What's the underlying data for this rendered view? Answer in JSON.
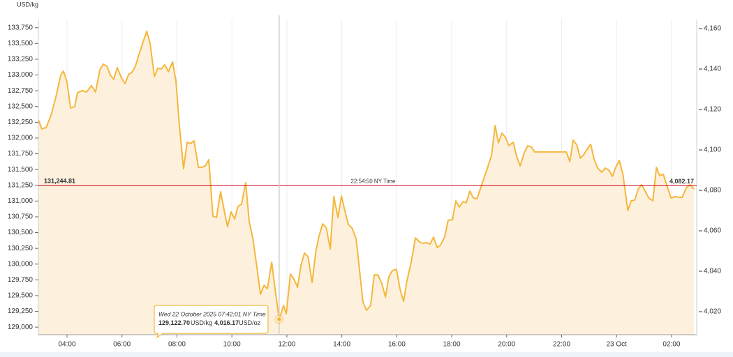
{
  "chart_data": {
    "type": "area",
    "y_unit": "USD/kg",
    "x": [
      2.96,
      3.08,
      3.24,
      3.42,
      3.59,
      3.77,
      3.87,
      4.0,
      4.13,
      4.28,
      4.38,
      4.56,
      4.71,
      4.89,
      5.04,
      5.2,
      5.32,
      5.45,
      5.58,
      5.7,
      5.83,
      5.98,
      6.11,
      6.24,
      6.36,
      6.49,
      6.62,
      6.77,
      6.9,
      7.02,
      7.18,
      7.3,
      7.43,
      7.56,
      7.69,
      7.84,
      7.96,
      8.09,
      8.24,
      8.37,
      8.5,
      8.62,
      8.78,
      8.9,
      9.03,
      9.16,
      9.31,
      9.44,
      9.59,
      9.72,
      9.84,
      9.97,
      10.1,
      10.22,
      10.35,
      10.5,
      10.63,
      10.76,
      10.91,
      11.04,
      11.17,
      11.29,
      11.45,
      11.6,
      11.72,
      11.88,
      11.98,
      12.13,
      12.26,
      12.39,
      12.51,
      12.64,
      12.77,
      12.92,
      13.05,
      13.17,
      13.3,
      13.43,
      13.58,
      13.71,
      13.86,
      13.99,
      14.11,
      14.24,
      14.37,
      14.52,
      14.65,
      14.77,
      14.9,
      15.05,
      15.18,
      15.31,
      15.46,
      15.59,
      15.71,
      15.84,
      15.99,
      16.12,
      16.25,
      16.37,
      16.53,
      16.68,
      16.83,
      16.96,
      17.09,
      17.21,
      17.34,
      17.47,
      17.6,
      17.75,
      17.87,
      18.03,
      18.15,
      18.28,
      18.41,
      18.53,
      18.66,
      18.79,
      18.92,
      19.04,
      19.17,
      19.3,
      19.45,
      19.58,
      19.7,
      19.83,
      19.96,
      20.08,
      20.24,
      20.36,
      20.49,
      20.64,
      20.77,
      20.9,
      21.02,
      21.41,
      21.66,
      21.92,
      22.17,
      22.3,
      22.42,
      22.55,
      22.68,
      22.8,
      22.93,
      23.06,
      23.18,
      23.31,
      23.46,
      23.59,
      23.72,
      23.85,
      23.97,
      24.1,
      24.23,
      24.41,
      24.53,
      24.66,
      24.79,
      24.91,
      25.04,
      25.17,
      25.32,
      25.45,
      25.57,
      25.7,
      25.83,
      25.98,
      26.13,
      26.26,
      26.39,
      26.54,
      26.67,
      26.82
    ],
    "values": [
      132288,
      132144,
      132166,
      132365,
      132642,
      132996,
      133063,
      132886,
      132476,
      132498,
      132720,
      132753,
      132731,
      132830,
      132731,
      133085,
      133173,
      133140,
      132996,
      132930,
      133118,
      132952,
      132864,
      133007,
      133040,
      133140,
      133328,
      133527,
      133694,
      133506,
      132974,
      133107,
      133096,
      133162,
      133052,
      133207,
      132919,
      132199,
      131513,
      131934,
      131912,
      131956,
      131535,
      131535,
      131557,
      131657,
      130760,
      130738,
      131148,
      130849,
      130594,
      130827,
      130716,
      130915,
      130949,
      131292,
      130672,
      130417,
      129952,
      129520,
      129664,
      129609,
      130029,
      129509,
      129122,
      129343,
      129210,
      129841,
      129764,
      129631,
      129974,
      130174,
      130118,
      129709,
      130184,
      130439,
      130638,
      130583,
      130240,
      131070,
      130738,
      131081,
      130849,
      130627,
      130572,
      130406,
      129886,
      129399,
      129266,
      129343,
      129830,
      129830,
      129686,
      129476,
      129797,
      129897,
      129919,
      129598,
      129410,
      129731,
      130041,
      130417,
      130351,
      130329,
      130340,
      130317,
      130428,
      130262,
      130306,
      130439,
      130694,
      130705,
      131004,
      130904,
      130993,
      130971,
      131159,
      131048,
      131037,
      131192,
      131358,
      131524,
      131723,
      132199,
      131923,
      132077,
      132011,
      131878,
      131934,
      131713,
      131557,
      131768,
      131878,
      131856,
      131779,
      131779,
      131779,
      131779,
      131779,
      131624,
      131967,
      131890,
      131680,
      131735,
      131824,
      131901,
      131669,
      131524,
      131458,
      131524,
      131491,
      131391,
      131535,
      131646,
      131425,
      130849,
      131004,
      131015,
      131192,
      131258,
      131159,
      131048,
      131004,
      131535,
      131402,
      131425,
      131248,
      131048,
      131070,
      131059,
      131059,
      131214,
      131258,
      131192
    ],
    "color": "#f5b73b",
    "fill_color": "#fdf1de",
    "xlim": [
      2.958,
      26.916
    ],
    "xticks": [
      {
        "value": 4,
        "label": "04:00"
      },
      {
        "value": 6,
        "label": "06:00"
      },
      {
        "value": 8,
        "label": "08:00"
      },
      {
        "value": 10,
        "label": "10:00"
      },
      {
        "value": 12,
        "label": "12:00"
      },
      {
        "value": 14,
        "label": "14:00"
      },
      {
        "value": 16,
        "label": "16:00"
      },
      {
        "value": 18,
        "label": "18:00"
      },
      {
        "value": 20,
        "label": "20:00"
      },
      {
        "value": 22,
        "label": "22:00"
      },
      {
        "value": 24,
        "label": "23 Oct"
      },
      {
        "value": 26,
        "label": "02:00"
      }
    ],
    "ylim": [
      128880,
      133880
    ],
    "yticks": [
      {
        "value": 129000,
        "label": "129,000"
      },
      {
        "value": 129250,
        "label": "129,250"
      },
      {
        "value": 129500,
        "label": "129,500"
      },
      {
        "value": 129750,
        "label": "129,750"
      },
      {
        "value": 130000,
        "label": "130,000"
      },
      {
        "value": 130250,
        "label": "130,250"
      },
      {
        "value": 130500,
        "label": "130,500"
      },
      {
        "value": 130750,
        "label": "130,750"
      },
      {
        "value": 131000,
        "label": "131,000"
      },
      {
        "value": 131250,
        "label": "131,250"
      },
      {
        "value": 131500,
        "label": "131,500"
      },
      {
        "value": 131750,
        "label": "131,750"
      },
      {
        "value": 132000,
        "label": "132,000"
      },
      {
        "value": 132250,
        "label": "132,250"
      },
      {
        "value": 132500,
        "label": "132,500"
      },
      {
        "value": 132750,
        "label": "132,750"
      },
      {
        "value": 133000,
        "label": "133,000"
      },
      {
        "value": 133250,
        "label": "133,250"
      },
      {
        "value": 133500,
        "label": "133,500"
      },
      {
        "value": 133750,
        "label": "133,750"
      }
    ],
    "y2lim": [
      4008.62,
      4164.48
    ],
    "y2ticks": [
      {
        "value": 4020,
        "label": "4,020"
      },
      {
        "value": 4040,
        "label": "4,040"
      },
      {
        "value": 4060,
        "label": "4,060"
      },
      {
        "value": 4080,
        "label": "4,080"
      },
      {
        "value": 4100,
        "label": "4,100"
      },
      {
        "value": 4120,
        "label": "4,120"
      },
      {
        "value": 4140,
        "label": "4,140"
      },
      {
        "value": 4160,
        "label": "4,160"
      }
    ],
    "grid": true,
    "reference_line": {
      "value": 131244.81,
      "value_label": "131,244.81",
      "time_label": "22:54:50 NY Time",
      "y2_value": 4082.17,
      "y2_label": "4,082.17",
      "color": "#d0021b"
    },
    "crosshair": {
      "x": 11.72,
      "date": "Wed 22 October 2025 07:42:01 NY Time",
      "value": 129122.7,
      "value_label": "129,122.70",
      "unit": "USD/kg",
      "y2_value": 4016.17,
      "y2_label": "4,016.17",
      "y2_unit": "USD/oz"
    }
  }
}
